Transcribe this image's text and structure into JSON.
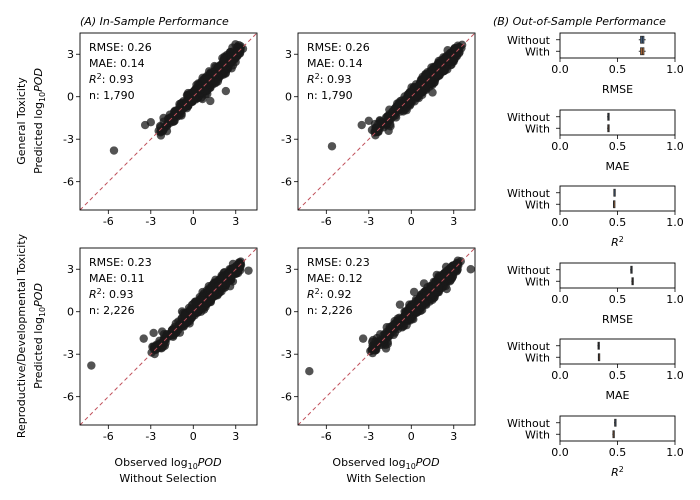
{
  "panel_titles": {
    "a": "(A) In-Sample Performance",
    "b": "(B) Out-of-Sample Performance"
  },
  "row_ylabels": [
    {
      "line1": "General Toxicity",
      "line2_prefix": "Predicted log",
      "line2_sub": "10",
      "line2_suffix": "POD"
    },
    {
      "line1": "Reproductive/Developmental Toxicity",
      "line2_prefix": "Predicted log",
      "line2_sub": "10",
      "line2_suffix": "POD"
    }
  ],
  "col_xlabels": [
    {
      "line1_prefix": "Observed log",
      "line1_sub": "10",
      "line1_suffix": "POD",
      "line2": "Without Selection"
    },
    {
      "line1_prefix": "Observed log",
      "line1_sub": "10",
      "line1_suffix": "POD",
      "line2": "With Selection"
    }
  ],
  "scatter_ticks": [
    "-6",
    "-3",
    "0",
    "3"
  ],
  "box_ticks": [
    "0.0",
    "0.5",
    "1.0"
  ],
  "box_categories": [
    "Without",
    "With"
  ],
  "colors": {
    "points": "#1a1a1a",
    "identity_line": "#c0505a",
    "without_box": "#4a6f9a",
    "with_box": "#d27a3a"
  },
  "chart_data": [
    {
      "type": "scatter",
      "id": "gt-without",
      "xlim": [
        -8,
        4.5
      ],
      "ylim": [
        -8,
        4.5
      ],
      "identity_line": true,
      "stats": {
        "rmse": "RMSE: 0.26",
        "mae": "MAE: 0.14",
        "r2_value": ": 0.93",
        "n": "n: 1,790"
      },
      "outliers": [
        [
          -5.6,
          -3.8
        ],
        [
          -3.4,
          -2.0
        ],
        [
          -3.0,
          -1.8
        ],
        [
          -2.1,
          -1.5
        ],
        [
          -1.3,
          -1.0
        ],
        [
          1.2,
          -0.3
        ],
        [
          2.3,
          0.4
        ]
      ],
      "dense": [
        [
          -2.6,
          3.4,
          1790,
          0.4
        ]
      ]
    },
    {
      "type": "scatter",
      "id": "gt-with",
      "xlim": [
        -8,
        4.5
      ],
      "ylim": [
        -8,
        4.5
      ],
      "identity_line": true,
      "stats": {
        "rmse": "RMSE: 0.26",
        "mae": "MAE: 0.14",
        "r2_value": ": 0.93",
        "n": "n: 1,790"
      },
      "outliers": [
        [
          -5.6,
          -3.5
        ],
        [
          -3.5,
          -2.0
        ],
        [
          -3.0,
          -1.7
        ],
        [
          -2.2,
          -1.7
        ],
        [
          -1.7,
          -1.4
        ],
        [
          0.8,
          1.4
        ],
        [
          1.5,
          0.3
        ],
        [
          2.3,
          2.6
        ]
      ],
      "dense": [
        [
          -2.6,
          3.4,
          1790,
          0.4
        ]
      ]
    },
    {
      "type": "scatter",
      "id": "rdt-without",
      "xlim": [
        -8,
        4.5
      ],
      "ylim": [
        -8,
        4.5
      ],
      "identity_line": true,
      "stats": {
        "rmse": "RMSE: 0.23",
        "mae": "MAE: 0.11",
        "r2_value": ": 0.93",
        "n": "n: 2,226"
      },
      "outliers": [
        [
          -7.2,
          -3.8
        ],
        [
          -3.5,
          -1.9
        ],
        [
          -2.8,
          -1.5
        ],
        [
          -2.2,
          -1.4
        ],
        [
          3.9,
          2.9
        ],
        [
          2.6,
          1.8
        ]
      ],
      "dense": [
        [
          -2.8,
          3.3,
          2226,
          0.38
        ]
      ]
    },
    {
      "type": "scatter",
      "id": "rdt-with",
      "xlim": [
        -8,
        4.5
      ],
      "ylim": [
        -8,
        4.5
      ],
      "identity_line": true,
      "stats": {
        "rmse": "RMSE: 0.23",
        "mae": "MAE: 0.12",
        "r2_value": ": 0.92",
        "n": "n: 2,226"
      },
      "outliers": [
        [
          -7.2,
          -4.2
        ],
        [
          -3.4,
          -1.9
        ],
        [
          -2.7,
          -2.0
        ],
        [
          -2.2,
          -1.6
        ],
        [
          -0.8,
          0.5
        ],
        [
          0.2,
          1.4
        ],
        [
          0.9,
          2.0
        ],
        [
          1.8,
          2.6
        ],
        [
          4.2,
          3.0
        ],
        [
          2.5,
          1.6
        ]
      ],
      "dense": [
        [
          -2.8,
          3.3,
          2226,
          0.4
        ]
      ]
    },
    {
      "type": "box",
      "id": "gt-rmse",
      "xlabel": "RMSE",
      "xlim": [
        0,
        1
      ],
      "series": [
        {
          "name": "Without",
          "q1": 0.7,
          "median": 0.715,
          "q3": 0.73,
          "min": 0.685,
          "max": 0.745
        },
        {
          "name": "With",
          "q1": 0.7,
          "median": 0.715,
          "q3": 0.73,
          "min": 0.685,
          "max": 0.745
        }
      ]
    },
    {
      "type": "box",
      "id": "gt-mae",
      "xlabel": "MAE",
      "xlim": [
        0,
        1
      ],
      "series": [
        {
          "name": "Without",
          "q1": 0.415,
          "median": 0.42,
          "q3": 0.425,
          "min": 0.41,
          "max": 0.43
        },
        {
          "name": "With",
          "q1": 0.415,
          "median": 0.42,
          "q3": 0.425,
          "min": 0.41,
          "max": 0.43
        }
      ]
    },
    {
      "type": "box",
      "id": "gt-r2",
      "xlabel": "R2",
      "xlim": [
        0,
        1
      ],
      "series": [
        {
          "name": "Without",
          "q1": 0.468,
          "median": 0.47,
          "q3": 0.472,
          "min": 0.465,
          "max": 0.475
        },
        {
          "name": "With",
          "q1": 0.465,
          "median": 0.467,
          "q3": 0.469,
          "min": 0.462,
          "max": 0.472
        }
      ]
    },
    {
      "type": "box",
      "id": "rdt-rmse",
      "xlabel": "RMSE",
      "xlim": [
        0,
        1
      ],
      "series": [
        {
          "name": "Without",
          "q1": 0.615,
          "median": 0.62,
          "q3": 0.625,
          "min": 0.61,
          "max": 0.63
        },
        {
          "name": "With",
          "q1": 0.625,
          "median": 0.63,
          "q3": 0.635,
          "min": 0.62,
          "max": 0.64
        }
      ]
    },
    {
      "type": "box",
      "id": "rdt-mae",
      "xlabel": "MAE",
      "xlim": [
        0,
        1
      ],
      "series": [
        {
          "name": "Without",
          "q1": 0.33,
          "median": 0.335,
          "q3": 0.34,
          "min": 0.325,
          "max": 0.345
        },
        {
          "name": "With",
          "q1": 0.333,
          "median": 0.337,
          "q3": 0.34,
          "min": 0.33,
          "max": 0.343
        }
      ]
    },
    {
      "type": "box",
      "id": "rdt-r2",
      "xlabel": "R2",
      "xlim": [
        0,
        1
      ],
      "series": [
        {
          "name": "Without",
          "q1": 0.475,
          "median": 0.478,
          "q3": 0.482,
          "min": 0.47,
          "max": 0.485
        },
        {
          "name": "With",
          "q1": 0.46,
          "median": 0.463,
          "q3": 0.467,
          "min": 0.455,
          "max": 0.47
        }
      ]
    }
  ]
}
